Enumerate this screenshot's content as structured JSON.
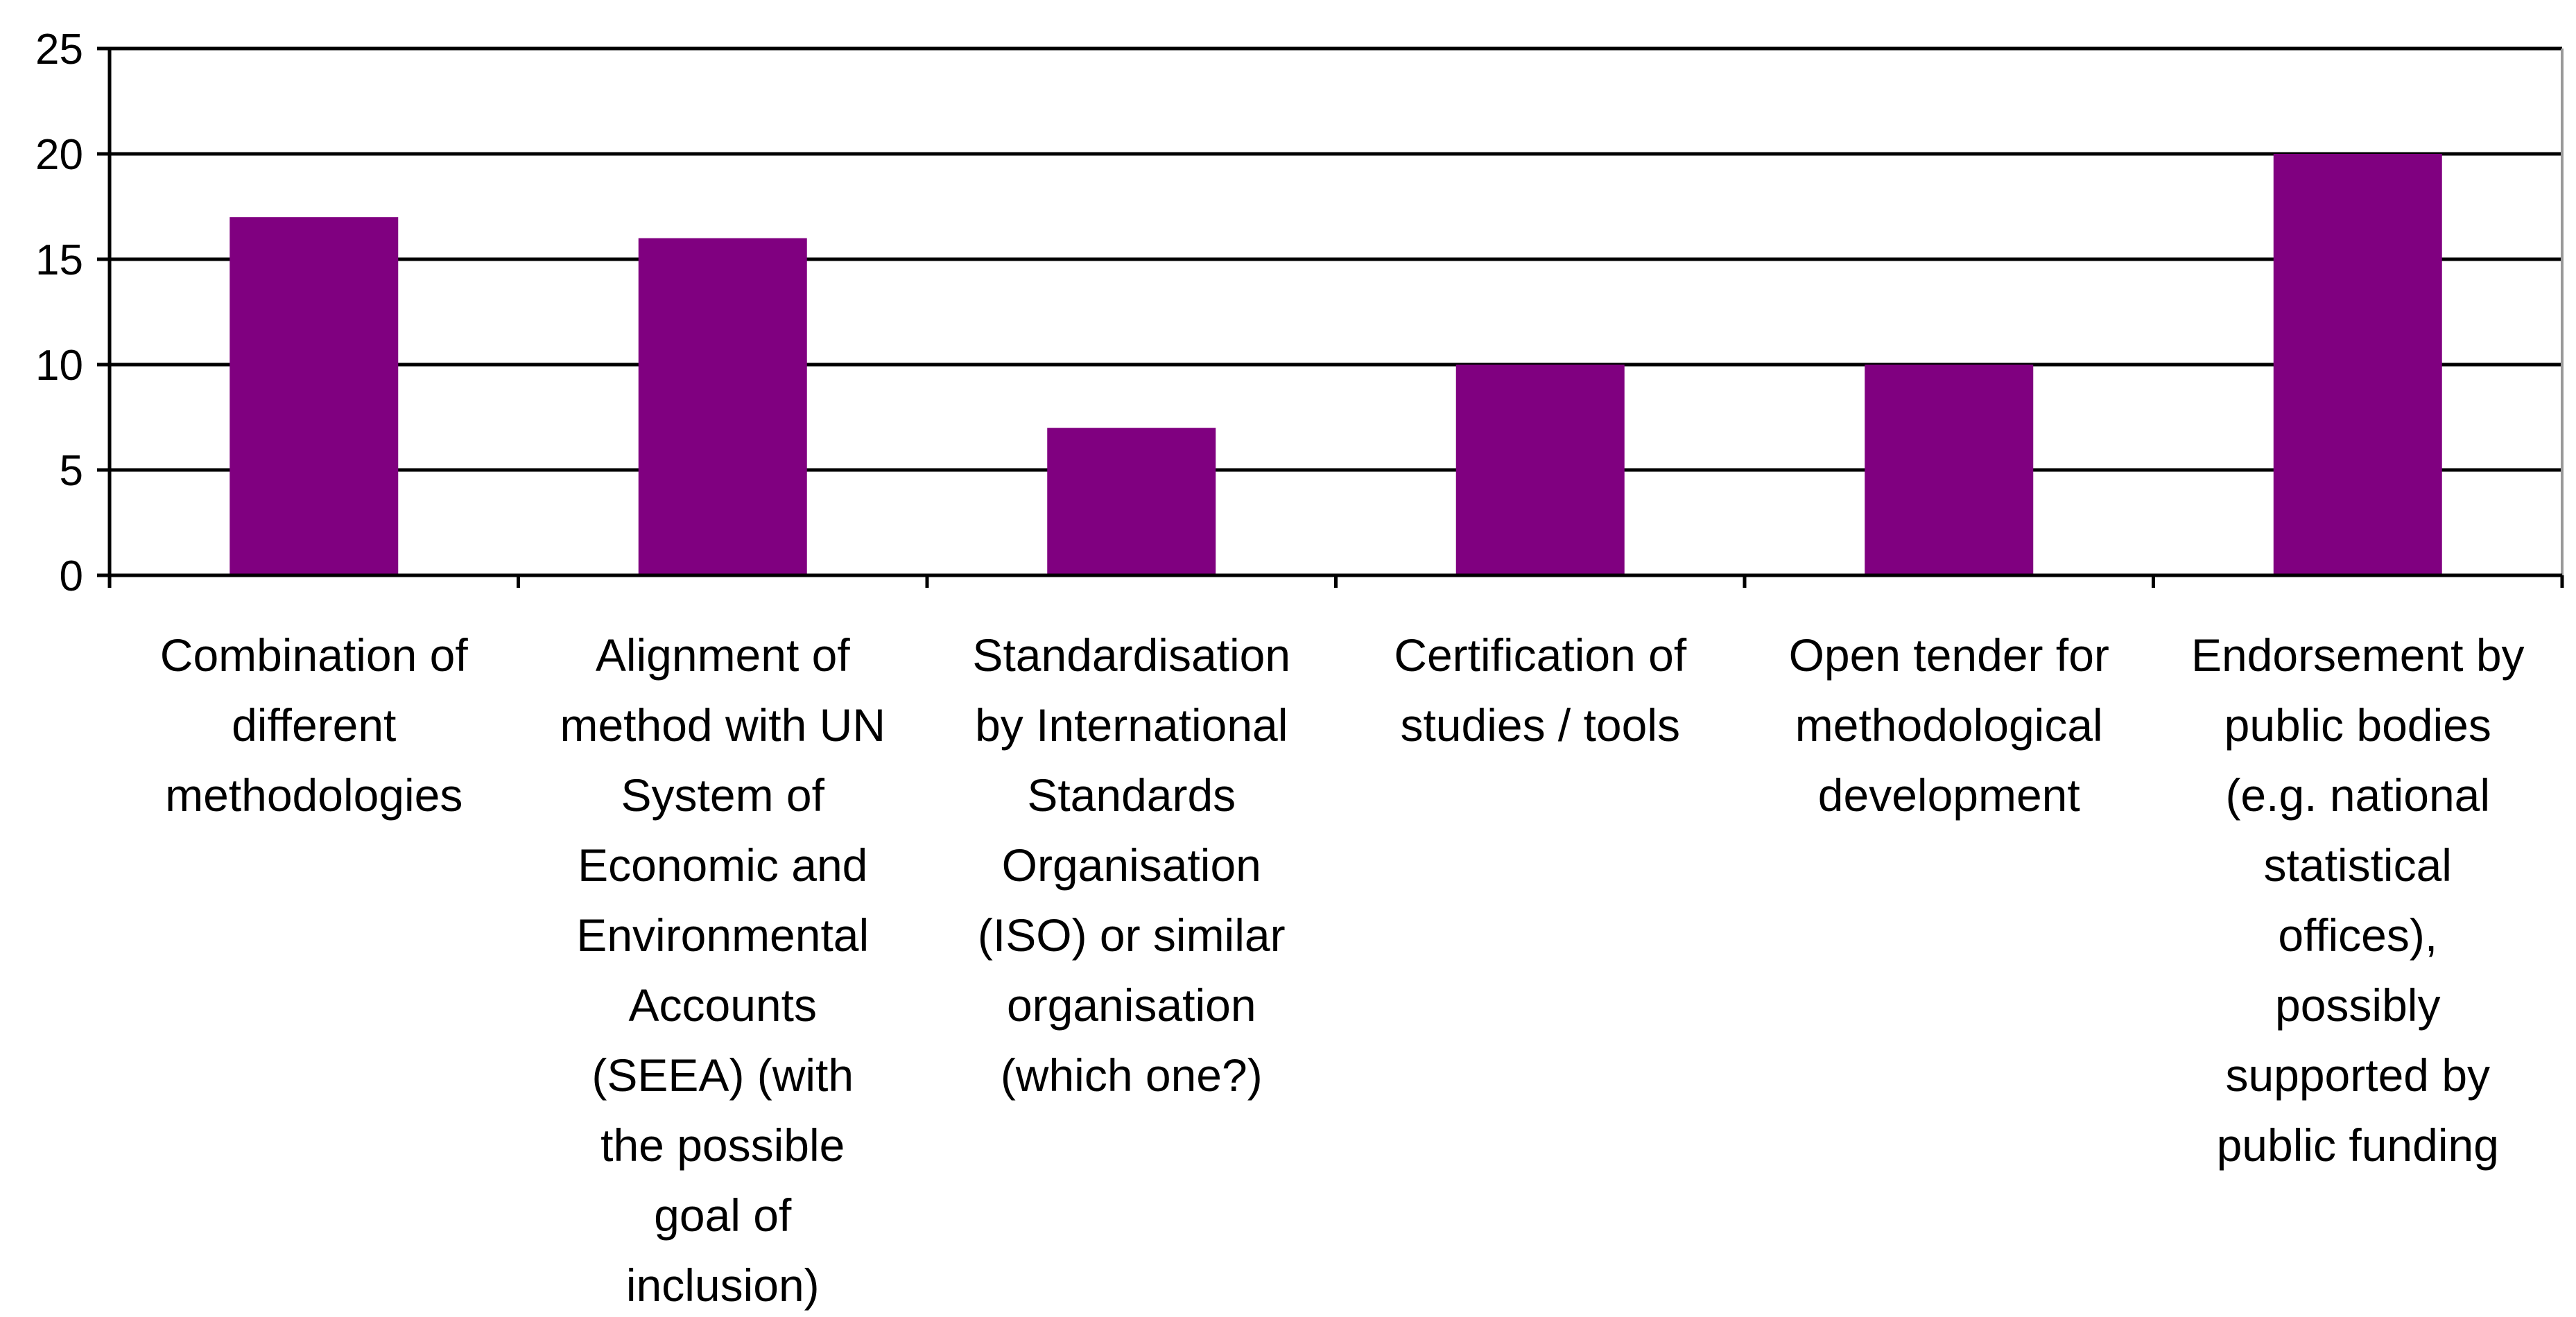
{
  "chart_data": {
    "type": "bar",
    "title": "",
    "xlabel": "",
    "ylabel": "",
    "categories": [
      "Combination of different methodologies",
      "Alignment of method with UN System of Economic and Environmental Accounts (SEEA) (with the possible goal of inclusion)",
      "Standardisation by International Standards Organisation (ISO) or similar organisation (which one?)",
      "Certification of studies / tools",
      "Open tender for methodological development",
      "Endorsement by public bodies (e.g. national statistical offices), possibly supported by public funding"
    ],
    "category_lines": [
      [
        "Combination of",
        "different",
        "methodologies"
      ],
      [
        "Alignment of",
        "method with UN",
        "System of",
        "Economic and",
        "Environmental",
        "Accounts",
        "(SEEA) (with",
        "the possible",
        "goal of",
        "inclusion)"
      ],
      [
        "Standardisation",
        "by International",
        "Standards",
        "Organisation",
        "(ISO) or similar",
        "organisation",
        "(which one?)"
      ],
      [
        "Certification of",
        "studies / tools"
      ],
      [
        "Open tender for",
        "methodological",
        "development"
      ],
      [
        "Endorsement by",
        "public bodies",
        "(e.g. national",
        "statistical",
        "offices),",
        "possibly",
        "supported by",
        "public funding"
      ]
    ],
    "values": [
      17,
      16,
      7,
      10,
      10,
      20
    ],
    "ylim": [
      0,
      25
    ],
    "yticks": [
      0,
      5,
      10,
      15,
      20,
      25
    ],
    "grid": true,
    "legend": "none",
    "bar_color": "#800080"
  }
}
